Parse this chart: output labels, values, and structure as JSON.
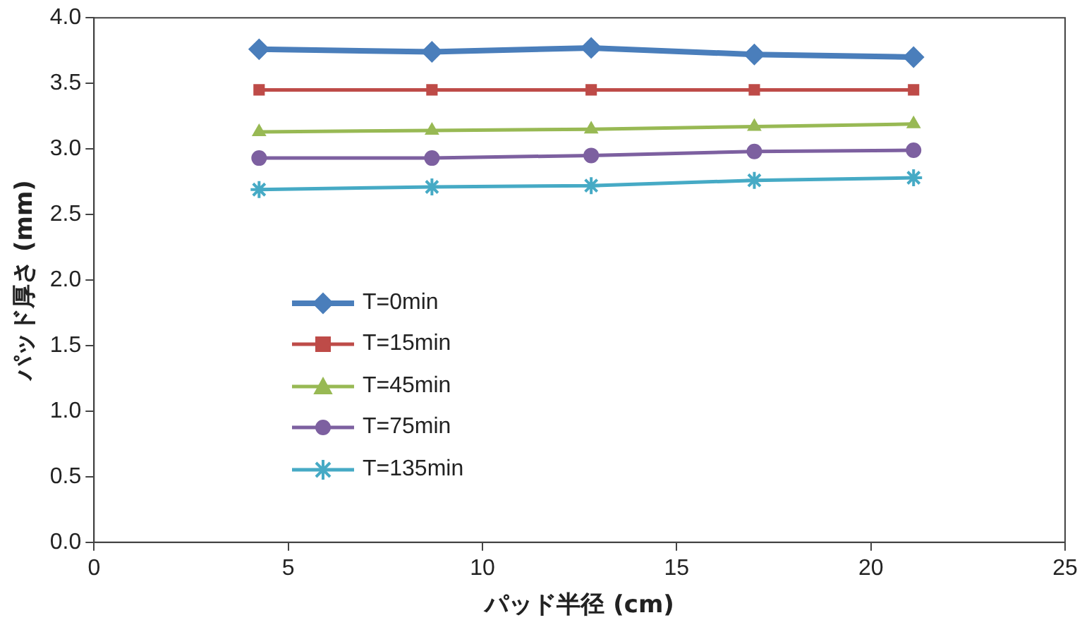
{
  "chart_data": {
    "type": "line",
    "xlabel": "パッド半径 (cm)",
    "ylabel": "パッド厚さ (mm)",
    "x": [
      4.25,
      8.7,
      12.8,
      17.0,
      21.1
    ],
    "xlim": [
      0,
      25
    ],
    "xticks": [
      0,
      5,
      10,
      15,
      20,
      25
    ],
    "ylim": [
      0,
      4
    ],
    "yticks": [
      {
        "value": 0,
        "label": "0.0"
      },
      {
        "value": 0.5,
        "label": "0.5"
      },
      {
        "value": 1,
        "label": "1.0"
      },
      {
        "value": 1.5,
        "label": "1.5"
      },
      {
        "value": 2,
        "label": "2.0"
      },
      {
        "value": 2.5,
        "label": "2.5"
      },
      {
        "value": 3,
        "label": "3.0"
      },
      {
        "value": 3.5,
        "label": "3.5"
      },
      {
        "value": 4,
        "label": "4.0"
      }
    ],
    "grid": false,
    "legend": "left",
    "line_style": "solid",
    "series": [
      {
        "name": "T=0min",
        "color": "#4a7ebb",
        "marker": "diamond",
        "values": [
          3.76,
          3.74,
          3.77,
          3.72,
          3.7
        ]
      },
      {
        "name": "T=15min",
        "color": "#be4b48",
        "marker": "square",
        "values": [
          3.45,
          3.45,
          3.45,
          3.45,
          3.45
        ]
      },
      {
        "name": "T=45min",
        "color": "#98b954",
        "marker": "triangle",
        "values": [
          3.13,
          3.14,
          3.15,
          3.17,
          3.19
        ]
      },
      {
        "name": "T=75min",
        "color": "#7d60a0",
        "marker": "circle",
        "values": [
          2.93,
          2.93,
          2.95,
          2.98,
          2.99
        ]
      },
      {
        "name": "T=135min",
        "color": "#46aac5",
        "marker": "cross",
        "values": [
          2.69,
          2.71,
          2.72,
          2.76,
          2.78
        ]
      }
    ]
  }
}
